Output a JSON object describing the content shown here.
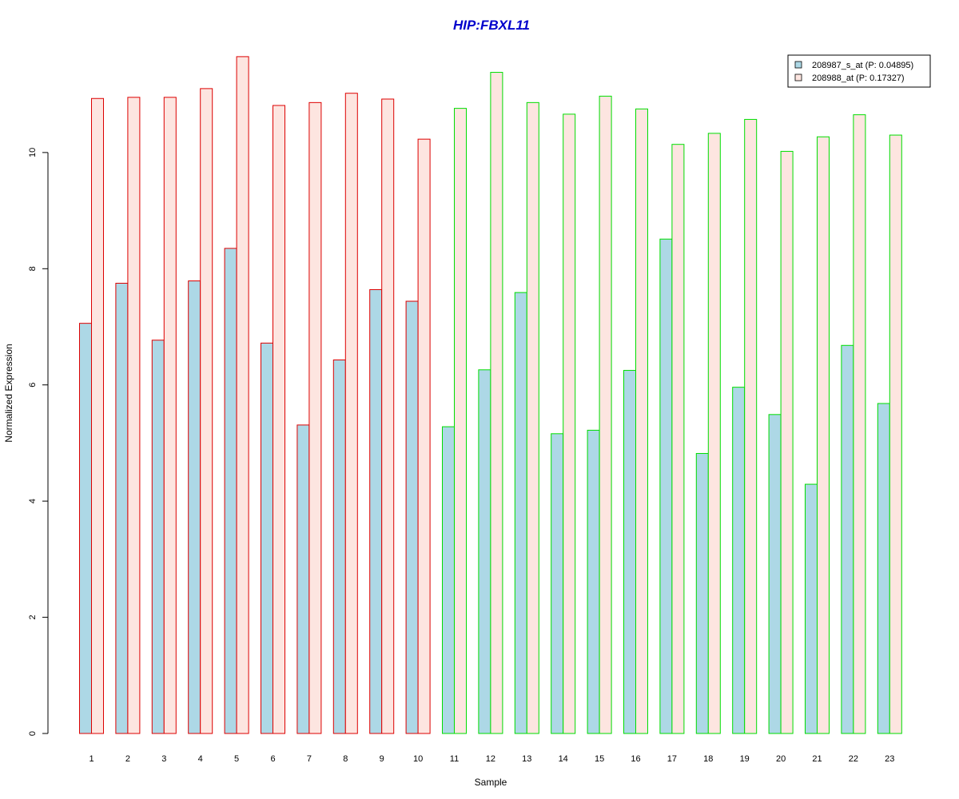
{
  "chart_data": {
    "type": "bar",
    "title": "HIP:FBXL11",
    "title_color": "#0000cc",
    "xlabel": "Sample",
    "ylabel": "Normalized Expression",
    "ylim": [
      0,
      11.8
    ],
    "yticks": [
      0,
      2,
      4,
      6,
      8,
      10
    ],
    "grid": false,
    "legend_position": "top-right",
    "categories": [
      "1",
      "2",
      "3",
      "4",
      "5",
      "6",
      "7",
      "8",
      "9",
      "10",
      "11",
      "12",
      "13",
      "14",
      "15",
      "16",
      "17",
      "18",
      "19",
      "20",
      "21",
      "22",
      "23"
    ],
    "group_border_colors": [
      "#dd0000",
      "#dd0000",
      "#dd0000",
      "#dd0000",
      "#dd0000",
      "#dd0000",
      "#dd0000",
      "#dd0000",
      "#dd0000",
      "#dd0000",
      "#00dd00",
      "#00dd00",
      "#00dd00",
      "#00dd00",
      "#00dd00",
      "#00dd00",
      "#00dd00",
      "#00dd00",
      "#00dd00",
      "#00dd00",
      "#00dd00",
      "#00dd00",
      "#00dd00"
    ],
    "series": [
      {
        "name": "208987_s_at (P: 0.04895)",
        "color": "#add8e6",
        "values": [
          7.06,
          7.75,
          6.77,
          7.79,
          8.35,
          6.72,
          5.31,
          6.43,
          7.64,
          7.44,
          5.28,
          6.26,
          7.59,
          5.16,
          5.22,
          6.25,
          8.51,
          4.82,
          5.96,
          5.49,
          4.29,
          6.68,
          5.68
        ]
      },
      {
        "name": "208988_at (P: 0.17327)",
        "color": "#fde5e0",
        "values": [
          10.93,
          10.95,
          10.95,
          11.1,
          11.65,
          10.81,
          10.86,
          11.02,
          10.92,
          10.23,
          10.76,
          11.38,
          10.86,
          10.66,
          10.97,
          10.75,
          10.14,
          10.33,
          10.57,
          10.02,
          10.27,
          10.65,
          10.3
        ]
      }
    ]
  }
}
